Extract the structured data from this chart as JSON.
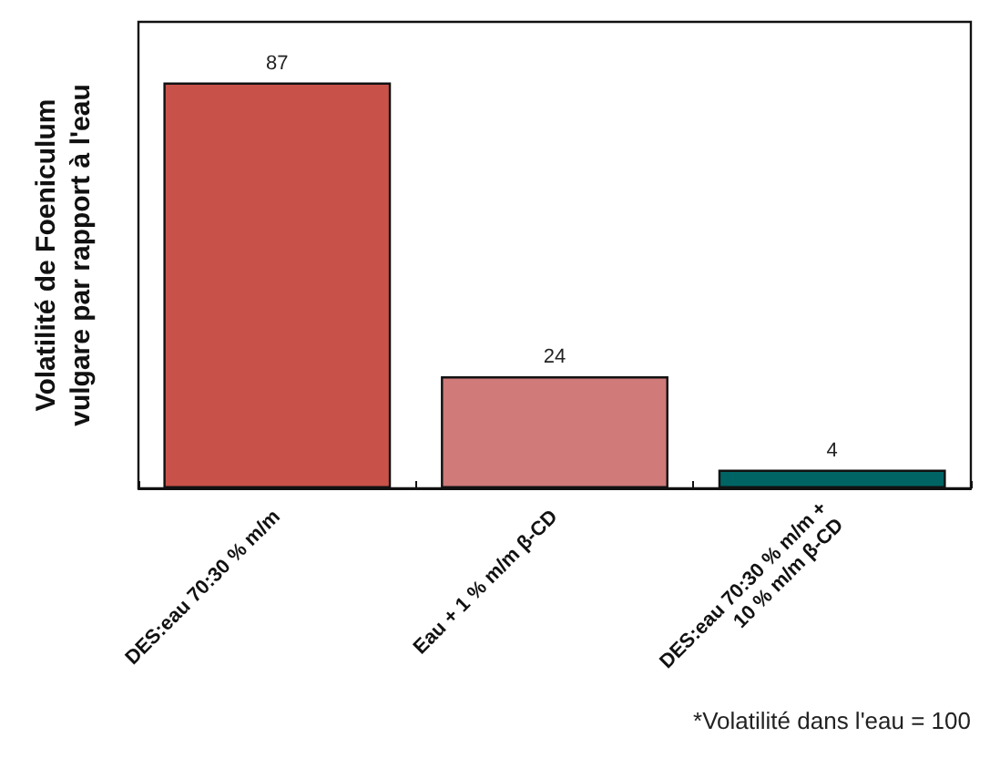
{
  "chart_data": {
    "type": "bar",
    "ylabel": "Volatilité de Foeniculum\nvulgare par rapport à l'eau",
    "categories": [
      "DES:eau 70:30 % m/m",
      "Eau + 1 % m/m β-CD",
      "DES:eau 70:30 % m/m +\n10 % m/m β-CD"
    ],
    "values": [
      87,
      24,
      4
    ],
    "colors": [
      "#c8524a",
      "#d07a7a",
      "#006464"
    ],
    "data_labels": true,
    "tick_labels": "x",
    "annotations": [
      "*Volatilité dans l'eau = 100"
    ]
  }
}
